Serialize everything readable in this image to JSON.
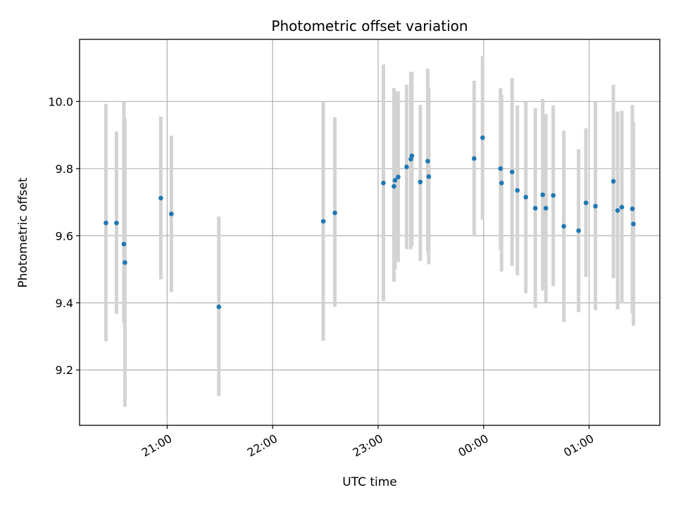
{
  "chart_data": {
    "type": "scatter",
    "title": "Photometric offset variation",
    "xlabel": "UTC time",
    "ylabel": "Photometric offset",
    "x_unit": "hours (UTC, continuing past midnight)",
    "xlim": [
      20.17,
      25.67
    ],
    "ylim": [
      9.035,
      10.185
    ],
    "xticks": [
      {
        "value": 21,
        "label": "21:00"
      },
      {
        "value": 22,
        "label": "22:00"
      },
      {
        "value": 23,
        "label": "23:00"
      },
      {
        "value": 24,
        "label": "00:00"
      },
      {
        "value": 25,
        "label": "01:00"
      }
    ],
    "yticks": [
      {
        "value": 9.2,
        "label": "9.2"
      },
      {
        "value": 9.4,
        "label": "9.4"
      },
      {
        "value": 9.6,
        "label": "9.6"
      },
      {
        "value": 9.8,
        "label": "9.8"
      },
      {
        "value": 10.0,
        "label": "10.0"
      }
    ],
    "grid": true,
    "point_color": "#1f77b4",
    "errorbar_color": "#d3d3d3",
    "points": [
      {
        "x": 20.42,
        "y": 9.638,
        "low": 9.285,
        "high": 9.993
      },
      {
        "x": 20.52,
        "y": 9.638,
        "low": 9.367,
        "high": 9.91
      },
      {
        "x": 20.59,
        "y": 9.575,
        "low": 9.34,
        "high": 10.0
      },
      {
        "x": 20.6,
        "y": 9.52,
        "low": 9.09,
        "high": 9.95
      },
      {
        "x": 20.94,
        "y": 9.712,
        "low": 9.47,
        "high": 9.955
      },
      {
        "x": 21.04,
        "y": 9.665,
        "low": 9.432,
        "high": 9.898
      },
      {
        "x": 21.49,
        "y": 9.388,
        "low": 9.122,
        "high": 9.657
      },
      {
        "x": 22.48,
        "y": 9.643,
        "low": 9.287,
        "high": 10.0
      },
      {
        "x": 22.59,
        "y": 9.668,
        "low": 9.388,
        "high": 9.953
      },
      {
        "x": 23.05,
        "y": 9.757,
        "low": 9.405,
        "high": 10.11
      },
      {
        "x": 23.15,
        "y": 9.747,
        "low": 9.463,
        "high": 10.04
      },
      {
        "x": 23.16,
        "y": 9.765,
        "low": 9.5,
        "high": 10.03
      },
      {
        "x": 23.19,
        "y": 9.775,
        "low": 9.522,
        "high": 10.03
      },
      {
        "x": 23.27,
        "y": 9.805,
        "low": 9.56,
        "high": 10.05
      },
      {
        "x": 23.31,
        "y": 9.828,
        "low": 9.56,
        "high": 10.088
      },
      {
        "x": 23.32,
        "y": 9.838,
        "low": 9.57,
        "high": 10.088
      },
      {
        "x": 23.4,
        "y": 9.76,
        "low": 9.525,
        "high": 9.99
      },
      {
        "x": 23.47,
        "y": 9.822,
        "low": 9.55,
        "high": 10.098
      },
      {
        "x": 23.48,
        "y": 9.776,
        "low": 9.515,
        "high": 10.04
      },
      {
        "x": 23.91,
        "y": 9.83,
        "low": 9.598,
        "high": 10.062
      },
      {
        "x": 23.99,
        "y": 9.892,
        "low": 9.648,
        "high": 10.135
      },
      {
        "x": 24.16,
        "y": 9.8,
        "low": 9.558,
        "high": 10.04
      },
      {
        "x": 24.17,
        "y": 9.757,
        "low": 9.493,
        "high": 10.02
      },
      {
        "x": 24.27,
        "y": 9.79,
        "low": 9.51,
        "high": 10.07
      },
      {
        "x": 24.32,
        "y": 9.735,
        "low": 9.482,
        "high": 9.988
      },
      {
        "x": 24.4,
        "y": 9.715,
        "low": 9.428,
        "high": 10.0
      },
      {
        "x": 24.49,
        "y": 9.682,
        "low": 9.385,
        "high": 9.98
      },
      {
        "x": 24.56,
        "y": 9.722,
        "low": 9.437,
        "high": 10.008
      },
      {
        "x": 24.59,
        "y": 9.682,
        "low": 9.4,
        "high": 9.963
      },
      {
        "x": 24.66,
        "y": 9.72,
        "low": 9.45,
        "high": 9.988
      },
      {
        "x": 24.76,
        "y": 9.628,
        "low": 9.343,
        "high": 9.913
      },
      {
        "x": 24.9,
        "y": 9.615,
        "low": 9.372,
        "high": 9.858
      },
      {
        "x": 24.97,
        "y": 9.698,
        "low": 9.477,
        "high": 9.92
      },
      {
        "x": 25.06,
        "y": 9.688,
        "low": 9.378,
        "high": 10.0
      },
      {
        "x": 25.23,
        "y": 9.762,
        "low": 9.473,
        "high": 10.05
      },
      {
        "x": 25.27,
        "y": 9.675,
        "low": 9.38,
        "high": 9.97
      },
      {
        "x": 25.31,
        "y": 9.685,
        "low": 9.398,
        "high": 9.972
      },
      {
        "x": 25.41,
        "y": 9.68,
        "low": 9.37,
        "high": 9.99
      },
      {
        "x": 25.42,
        "y": 9.635,
        "low": 9.332,
        "high": 9.938
      }
    ]
  }
}
